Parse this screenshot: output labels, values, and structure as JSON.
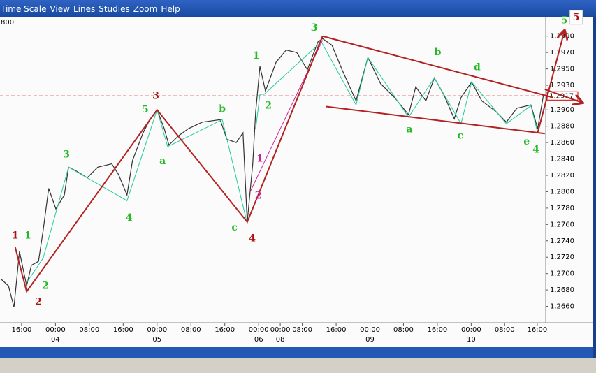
{
  "menu": [
    "Time Scale",
    "View",
    "Lines",
    "Studies",
    "Zoom",
    "Help"
  ],
  "corner_label": "800",
  "chart_data": {
    "type": "line",
    "color": "#333333",
    "xlim": [
      -5.1,
      123.8
    ],
    "ylim": [
      1.264,
      1.3
    ],
    "yticks": [
      {
        "value": 1.266,
        "label": "1.2660"
      },
      {
        "value": 1.268,
        "label": "1.2680"
      },
      {
        "value": 1.27,
        "label": "1.2700"
      },
      {
        "value": 1.272,
        "label": "1.2720"
      },
      {
        "value": 1.274,
        "label": "1.2740"
      },
      {
        "value": 1.276,
        "label": "1.2760"
      },
      {
        "value": 1.278,
        "label": "1.2780"
      },
      {
        "value": 1.28,
        "label": "1.2800"
      },
      {
        "value": 1.282,
        "label": "1.2820"
      },
      {
        "value": 1.284,
        "label": "1.2840"
      },
      {
        "value": 1.286,
        "label": "1.2860"
      },
      {
        "value": 1.288,
        "label": "1.2880"
      },
      {
        "value": 1.29,
        "label": "1.2900"
      },
      {
        "value": 1.293,
        "label": "1.2930"
      },
      {
        "value": 1.295,
        "label": "1.2950"
      },
      {
        "value": 1.297,
        "label": "1.2970"
      },
      {
        "value": 1.299,
        "label": "1.2990"
      }
    ],
    "xticks": [
      {
        "value": 0,
        "label": "16:00"
      },
      {
        "value": 8,
        "label": "00:00"
      },
      {
        "value": 16,
        "label": "08:00"
      },
      {
        "value": 24,
        "label": "16:00"
      },
      {
        "value": 32,
        "label": "00:00"
      },
      {
        "value": 40,
        "label": "08:00"
      },
      {
        "value": 48,
        "label": "16:00"
      },
      {
        "value": 56,
        "label": "00:00"
      },
      {
        "value": 61.1,
        "label": "00:00"
      },
      {
        "value": 66.3,
        "label": "08:00"
      },
      {
        "value": 74.3,
        "label": "16:00"
      },
      {
        "value": 82.3,
        "label": "00:00"
      },
      {
        "value": 90.2,
        "label": "08:00"
      },
      {
        "value": 98.2,
        "label": "16:00"
      },
      {
        "value": 106.2,
        "label": "00:00"
      },
      {
        "value": 114.1,
        "label": "08:00"
      },
      {
        "value": 121.8,
        "label": "16:00"
      }
    ],
    "date_labels": [
      {
        "value": 8,
        "label": "04"
      },
      {
        "value": 32,
        "label": "05"
      },
      {
        "value": 56,
        "label": "06"
      },
      {
        "value": 61.1,
        "label": "08"
      },
      {
        "value": 82.3,
        "label": "09"
      },
      {
        "value": 106.2,
        "label": "10"
      }
    ],
    "last_price": {
      "value": 1.2917,
      "label": "1.2917",
      "color": "#cc0000"
    },
    "x": [
      -4.8,
      -3.1,
      -1.8,
      -0.5,
      1.2,
      2.3,
      4,
      5.1,
      6.4,
      8.1,
      10.1,
      11.1,
      13,
      15.5,
      18,
      21.3,
      22.9,
      24.9,
      26.2,
      28.7,
      30.4,
      32,
      33.7,
      34.8,
      37,
      39.4,
      42.7,
      46.9,
      48.5,
      50.7,
      52.3,
      53.3,
      54.6,
      55.3,
      56.3,
      57.6,
      60.1,
      62.5,
      65,
      67.5,
      70,
      71.1,
      73.3,
      75.7,
      79,
      81.8,
      84.8,
      88.1,
      91.4,
      93.1,
      95.5,
      97.5,
      99.7,
      102.2,
      103.8,
      106.3,
      108.7,
      112,
      114.5,
      117,
      120.3,
      121.9,
      123.3
    ],
    "values": [
      1.2693,
      1.2685,
      1.2659,
      1.2727,
      1.2685,
      1.271,
      1.2715,
      1.2753,
      1.2804,
      1.2779,
      1.2796,
      1.283,
      1.2825,
      1.2817,
      1.283,
      1.2834,
      1.2821,
      1.2796,
      1.2838,
      1.2872,
      1.2889,
      1.29,
      1.2877,
      1.2857,
      1.2868,
      1.2877,
      1.2885,
      1.2888,
      1.2864,
      1.286,
      1.2872,
      1.2763,
      1.2834,
      1.2898,
      1.2953,
      1.2923,
      1.2958,
      1.2973,
      1.297,
      1.2949,
      1.2983,
      1.2987,
      1.2979,
      1.2949,
      1.2911,
      1.2964,
      1.2932,
      1.2915,
      1.2894,
      1.2928,
      1.2911,
      1.2939,
      1.2919,
      1.2889,
      1.2915,
      1.2934,
      1.2911,
      1.2898,
      1.2885,
      1.2902,
      1.2906,
      1.2877,
      1.2919
    ],
    "overlays": [
      {
        "color": "#22cc99",
        "x": [
          1.2,
          5.1,
          11.1,
          24.9,
          32,
          34.5,
          47.4,
          53.3
        ],
        "y": [
          1.2689,
          1.2719,
          1.283,
          1.2789,
          1.29,
          1.2855,
          1.2888,
          1.2761
        ]
      },
      {
        "color": "#22cc99",
        "x": [
          55.3,
          56.3,
          57.3,
          70.8,
          79,
          81.8,
          91.4,
          97.5,
          103.8,
          106.3,
          114.5,
          120.3,
          121.9
        ],
        "y": [
          1.2877,
          1.2919,
          1.2919,
          1.2983,
          1.2906,
          1.2964,
          1.2891,
          1.2939,
          1.2883,
          1.2934,
          1.2883,
          1.2905,
          1.2872
        ]
      },
      {
        "color": "#cc2299",
        "x": [
          54,
          71.1
        ],
        "y": [
          1.28,
          1.2985
        ]
      },
      {
        "color": "#b22222",
        "x": [
          -1.5,
          1.2,
          32,
          53.3,
          71.1
        ],
        "y": [
          1.2732,
          1.2678,
          1.29,
          1.2763,
          1.299
        ]
      },
      {
        "color": "#b22222",
        "x": [
          71.1,
          125.6
        ],
        "y": [
          1.299,
          1.2915
        ]
      },
      {
        "color": "#b22222",
        "x": [
          71.9,
          123.6
        ],
        "y": [
          1.2904,
          1.2871
        ]
      },
      {
        "color": "#b22222",
        "x": [
          121.9,
          128.2
        ],
        "y": [
          1.2872,
          1.2996
        ],
        "arrow": true
      },
      {
        "color": "#b22222",
        "x": [
          123.6,
          132.3
        ],
        "y": [
          1.2925,
          1.2909
        ],
        "arrow": true
      }
    ],
    "annotations": [
      {
        "text": "1",
        "color": "#aa1111",
        "x": -1.5,
        "y": 1.2746
      },
      {
        "text": "1",
        "color": "#22bb22",
        "x": 1.5,
        "y": 1.2746
      },
      {
        "text": "2",
        "color": "#22bb22",
        "x": 5.6,
        "y": 1.2685
      },
      {
        "text": "2",
        "color": "#aa1111",
        "x": 4.0,
        "y": 1.2665
      },
      {
        "text": "3",
        "color": "#22bb22",
        "x": 10.6,
        "y": 1.2845
      },
      {
        "text": "4",
        "color": "#22bb22",
        "x": 25.4,
        "y": 1.2768
      },
      {
        "text": "5",
        "color": "#22bb22",
        "x": 29.2,
        "y": 1.29
      },
      {
        "text": "3",
        "color": "#aa1111",
        "x": 31.7,
        "y": 1.2917
      },
      {
        "text": "a",
        "color": "#22bb22",
        "x": 33.3,
        "y": 1.2837
      },
      {
        "text": "b",
        "color": "#22bb22",
        "x": 47.4,
        "y": 1.2901
      },
      {
        "text": "c",
        "color": "#22bb22",
        "x": 50.3,
        "y": 1.2756
      },
      {
        "text": "4",
        "color": "#aa1111",
        "x": 54.5,
        "y": 1.2743
      },
      {
        "text": "1",
        "color": "#cc2299",
        "x": 56.3,
        "y": 1.284
      },
      {
        "text": "2",
        "color": "#cc2299",
        "x": 55.9,
        "y": 1.2795
      },
      {
        "text": "1",
        "color": "#22bb22",
        "x": 55.4,
        "y": 1.2966
      },
      {
        "text": "2",
        "color": "#22bb22",
        "x": 58.3,
        "y": 1.2905
      },
      {
        "text": "3",
        "color": "#22bb22",
        "x": 69.1,
        "y": 1.3
      },
      {
        "text": "b",
        "color": "#22bb22",
        "x": 98.3,
        "y": 1.297
      },
      {
        "text": "d",
        "color": "#22bb22",
        "x": 107.6,
        "y": 1.2952
      },
      {
        "text": "a",
        "color": "#22bb22",
        "x": 91.6,
        "y": 1.2876
      },
      {
        "text": "c",
        "color": "#22bb22",
        "x": 103.6,
        "y": 1.2868
      },
      {
        "text": "e",
        "color": "#22bb22",
        "x": 119.3,
        "y": 1.2861
      },
      {
        "text": "4",
        "color": "#22bb22",
        "x": 121.5,
        "y": 1.2851
      },
      {
        "text": "5",
        "color": "#22bb22",
        "x": 128.2,
        "y": 1.3009
      },
      {
        "text": "5",
        "color": "#aa1111",
        "x": 131,
        "y": 1.3013,
        "boxed": true
      }
    ]
  }
}
